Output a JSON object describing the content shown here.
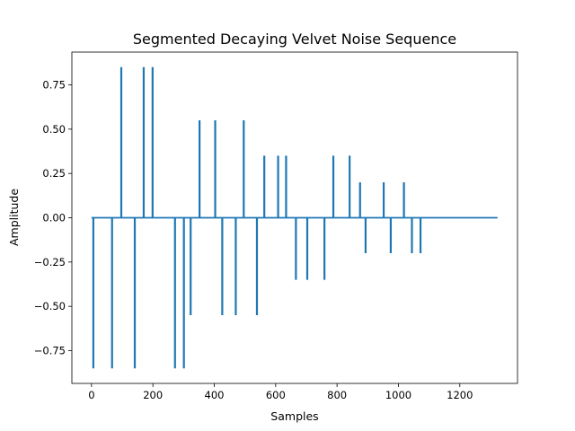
{
  "chart_data": {
    "type": "stem",
    "title": "Segmented Decaying Velvet Noise Sequence",
    "xlabel": "Samples",
    "ylabel": "Amplitude",
    "xlim": [
      -64,
      1388
    ],
    "ylim": [
      -0.935,
      0.935
    ],
    "xticks": [
      0,
      200,
      400,
      600,
      800,
      1000,
      1200
    ],
    "yticks": [
      -0.75,
      -0.5,
      -0.25,
      0.0,
      0.25,
      0.5,
      0.75
    ],
    "ytick_labels": [
      "−0.75",
      "−0.50",
      "−0.25",
      "0.00",
      "0.25",
      "0.50",
      "0.75"
    ],
    "grid": false,
    "color": "#1f77b4",
    "baseline": {
      "x0": 0,
      "x1": 1323,
      "y": 0
    },
    "impulses": [
      {
        "x": 6,
        "y": -0.85
      },
      {
        "x": 67,
        "y": -0.85
      },
      {
        "x": 97,
        "y": 0.85
      },
      {
        "x": 141,
        "y": -0.85
      },
      {
        "x": 170,
        "y": 0.85
      },
      {
        "x": 199,
        "y": 0.85
      },
      {
        "x": 272,
        "y": -0.85
      },
      {
        "x": 301,
        "y": -0.85
      },
      {
        "x": 323,
        "y": -0.55
      },
      {
        "x": 352,
        "y": 0.55
      },
      {
        "x": 403,
        "y": 0.55
      },
      {
        "x": 426,
        "y": -0.55
      },
      {
        "x": 470,
        "y": -0.55
      },
      {
        "x": 496,
        "y": 0.55
      },
      {
        "x": 539,
        "y": -0.55
      },
      {
        "x": 563,
        "y": 0.35
      },
      {
        "x": 608,
        "y": 0.35
      },
      {
        "x": 634,
        "y": 0.35
      },
      {
        "x": 666,
        "y": -0.35
      },
      {
        "x": 703,
        "y": -0.35
      },
      {
        "x": 759,
        "y": -0.35
      },
      {
        "x": 788,
        "y": 0.35
      },
      {
        "x": 841,
        "y": 0.35
      },
      {
        "x": 875,
        "y": 0.2
      },
      {
        "x": 893,
        "y": -0.2
      },
      {
        "x": 952,
        "y": 0.2
      },
      {
        "x": 975,
        "y": -0.2
      },
      {
        "x": 1018,
        "y": 0.2
      },
      {
        "x": 1044,
        "y": -0.2
      },
      {
        "x": 1072,
        "y": -0.2
      }
    ]
  }
}
